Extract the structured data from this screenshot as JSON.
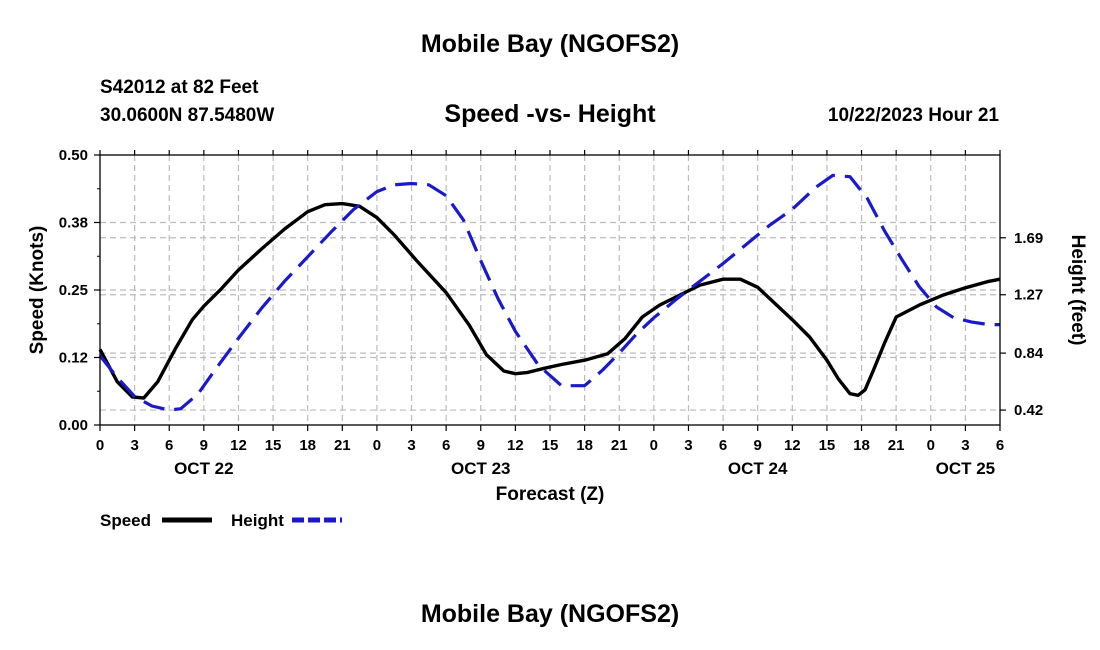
{
  "page": {
    "title_top": "Mobile Bay (NGOFS2)",
    "station": "S42012 at 82 Feet",
    "coords": "30.0600N  87.5480W",
    "subtitle": "Speed -vs- Height",
    "datetime": "10/22/2023 Hour 21",
    "title_bottom": "Mobile Bay (NGOFS2)"
  },
  "colors": {
    "speed": "#000000",
    "height": "#1a1acc",
    "grid": "#bbbbbb"
  },
  "chart_data": {
    "type": "line",
    "xlabel": "Forecast (Z)",
    "ylabel": "Speed (Knots)",
    "y2label": "Height (feet)",
    "x_unit": "hours",
    "xlim": [
      0,
      78
    ],
    "x_ticks": [
      0,
      3,
      6,
      9,
      12,
      15,
      18,
      21,
      24,
      27,
      30,
      33,
      36,
      39,
      42,
      45,
      48,
      51,
      54,
      57,
      60,
      63,
      66,
      69,
      72,
      75,
      78
    ],
    "x_tick_labels": [
      "0",
      "3",
      "6",
      "9",
      "12",
      "15",
      "18",
      "21",
      "0",
      "3",
      "6",
      "9",
      "12",
      "15",
      "18",
      "21",
      "0",
      "3",
      "6",
      "9",
      "12",
      "15",
      "18",
      "21",
      "0",
      "3",
      "6"
    ],
    "day_labels": [
      {
        "x": 9,
        "label": "OCT 22"
      },
      {
        "x": 33,
        "label": "OCT 23"
      },
      {
        "x": 57,
        "label": "OCT 24"
      },
      {
        "x": 75,
        "label": "OCT 25"
      }
    ],
    "ylim": [
      0,
      0.5
    ],
    "y_ticks": [
      0.0,
      0.125,
      0.25,
      0.375,
      0.5
    ],
    "y_tick_labels": [
      "0.00",
      "0.12",
      "0.25",
      "0.38",
      "0.50"
    ],
    "y2lim": [
      0.31,
      2.3
    ],
    "y2_ticks": [
      0.42,
      0.84,
      1.27,
      1.69
    ],
    "y2_tick_labels": [
      "0.42",
      "0.84",
      "1.27",
      "1.69"
    ],
    "grid": true,
    "legend_position": "bottom-left",
    "series": [
      {
        "name": "Speed",
        "axis": "left",
        "style": "solid",
        "x": [
          0,
          1.5,
          2.8,
          3.8,
          5,
          6.5,
          8,
          9,
          10.5,
          12,
          14,
          16,
          18,
          19.5,
          21,
          22.5,
          24,
          25.5,
          27.5,
          30,
          32,
          33.5,
          35,
          36,
          37,
          38.5,
          40,
          42,
          44,
          45.5,
          47,
          48.5,
          50,
          52,
          54,
          55.5,
          57,
          58.5,
          60,
          61.5,
          63,
          64,
          65,
          65.7,
          66.3,
          67,
          68,
          69,
          71,
          73,
          75,
          77,
          78
        ],
        "values": [
          0.14,
          0.08,
          0.052,
          0.05,
          0.08,
          0.14,
          0.195,
          0.22,
          0.252,
          0.287,
          0.326,
          0.363,
          0.395,
          0.408,
          0.41,
          0.405,
          0.384,
          0.352,
          0.303,
          0.245,
          0.185,
          0.13,
          0.1,
          0.095,
          0.097,
          0.105,
          0.112,
          0.12,
          0.132,
          0.16,
          0.2,
          0.222,
          0.238,
          0.259,
          0.27,
          0.27,
          0.255,
          0.225,
          0.195,
          0.163,
          0.12,
          0.085,
          0.058,
          0.055,
          0.065,
          0.1,
          0.152,
          0.2,
          0.222,
          0.24,
          0.254,
          0.266,
          0.27
        ]
      },
      {
        "name": "Height",
        "axis": "right",
        "style": "dashed",
        "x": [
          0,
          1.5,
          3,
          4.5,
          6,
          7,
          8.5,
          10,
          12,
          14,
          16,
          18,
          20,
          22,
          24,
          25.5,
          27,
          28.5,
          30,
          31.5,
          33,
          34.5,
          36,
          38,
          40,
          42,
          43.5,
          45,
          46.5,
          48,
          50,
          52,
          54,
          56,
          58,
          60,
          62,
          63.5,
          65,
          66.5,
          68,
          69.5,
          71,
          72.5,
          74,
          75.5,
          77,
          78
        ],
        "values": [
          0.82,
          0.66,
          0.52,
          0.45,
          0.42,
          0.43,
          0.54,
          0.72,
          0.95,
          1.17,
          1.37,
          1.55,
          1.73,
          1.9,
          2.03,
          2.08,
          2.09,
          2.08,
          2.0,
          1.82,
          1.52,
          1.24,
          1.0,
          0.75,
          0.6,
          0.6,
          0.71,
          0.84,
          0.98,
          1.1,
          1.24,
          1.37,
          1.5,
          1.64,
          1.78,
          1.9,
          2.06,
          2.15,
          2.14,
          1.98,
          1.74,
          1.53,
          1.33,
          1.18,
          1.1,
          1.07,
          1.05,
          1.05
        ]
      }
    ],
    "legend": [
      {
        "label": "Speed",
        "style": "solid"
      },
      {
        "label": "Height",
        "style": "dashed"
      }
    ]
  }
}
